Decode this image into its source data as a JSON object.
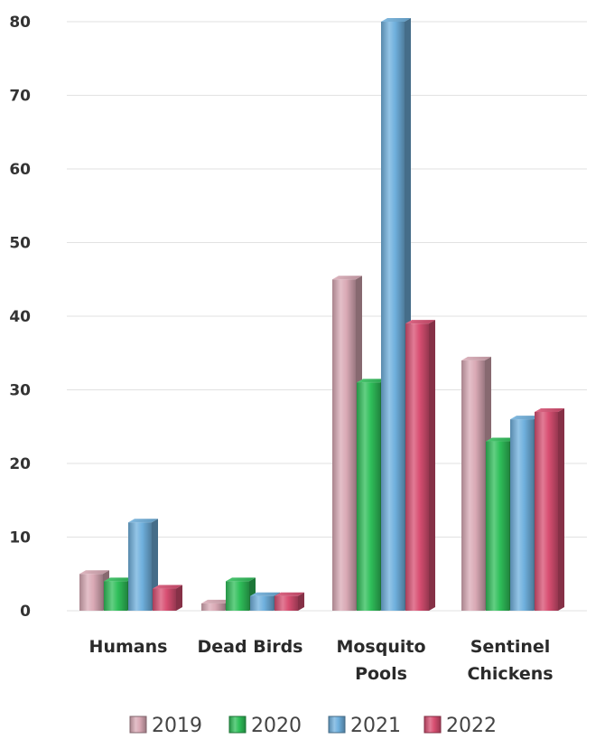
{
  "chart_data": {
    "type": "bar",
    "categories": [
      [
        "Humans"
      ],
      [
        "Dead Birds"
      ],
      [
        "Mosquito",
        "Pools"
      ],
      [
        "Sentinel",
        "Chickens"
      ]
    ],
    "series": [
      {
        "name": "2019",
        "color": "#d9a9b5",
        "values": [
          5,
          1,
          45,
          34
        ]
      },
      {
        "name": "2020",
        "color": "#2fbf5a",
        "values": [
          4,
          4,
          31,
          23
        ]
      },
      {
        "name": "2021",
        "color": "#6fb0dd",
        "values": [
          12,
          2,
          80,
          26
        ]
      },
      {
        "name": "2022",
        "color": "#d84f72",
        "values": [
          3,
          2,
          39,
          27
        ]
      }
    ],
    "yticks": [
      0,
      10,
      20,
      30,
      40,
      50,
      60,
      70,
      80
    ],
    "ylim": [
      0,
      80
    ],
    "grid": true,
    "legend": "bottom",
    "style": "3d-cylinder-bars"
  }
}
